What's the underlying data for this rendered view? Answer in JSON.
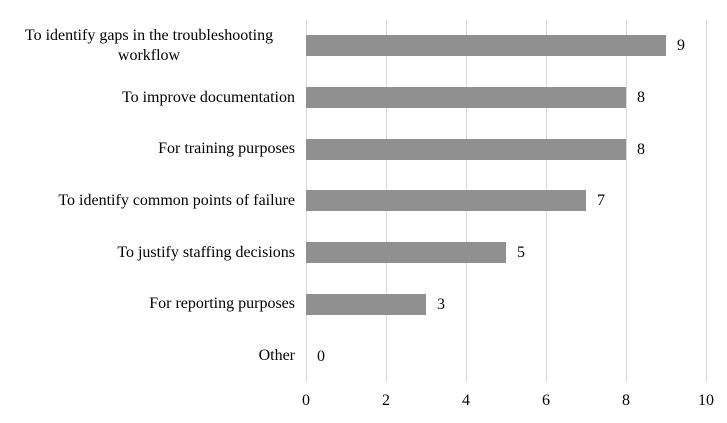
{
  "chart_data": {
    "type": "bar",
    "orientation": "horizontal",
    "title": "",
    "xlabel": "",
    "ylabel": "",
    "categories": [
      "To identify gaps in the troubleshooting workflow",
      "To improve documentation",
      "For training purposes",
      "To identify common points of failure",
      "To justify staffing decisions",
      "For reporting purposes",
      "Other"
    ],
    "values": [
      9,
      8,
      8,
      7,
      5,
      3,
      0
    ],
    "value_labels": [
      "9",
      "8",
      "8",
      "7",
      "5",
      "3",
      "0"
    ],
    "x_ticks": [
      0,
      2,
      4,
      6,
      8,
      10
    ],
    "x_tick_labels": [
      "0",
      "2",
      "4",
      "6",
      "8",
      "10"
    ],
    "xlim": [
      0,
      10
    ],
    "grid": true,
    "legend": "none",
    "colors": {
      "bar": "#909090",
      "gridline": "#d9d9d9",
      "axis_line": "#d9d9d9",
      "text": "#000000",
      "background": "#ffffff"
    }
  }
}
